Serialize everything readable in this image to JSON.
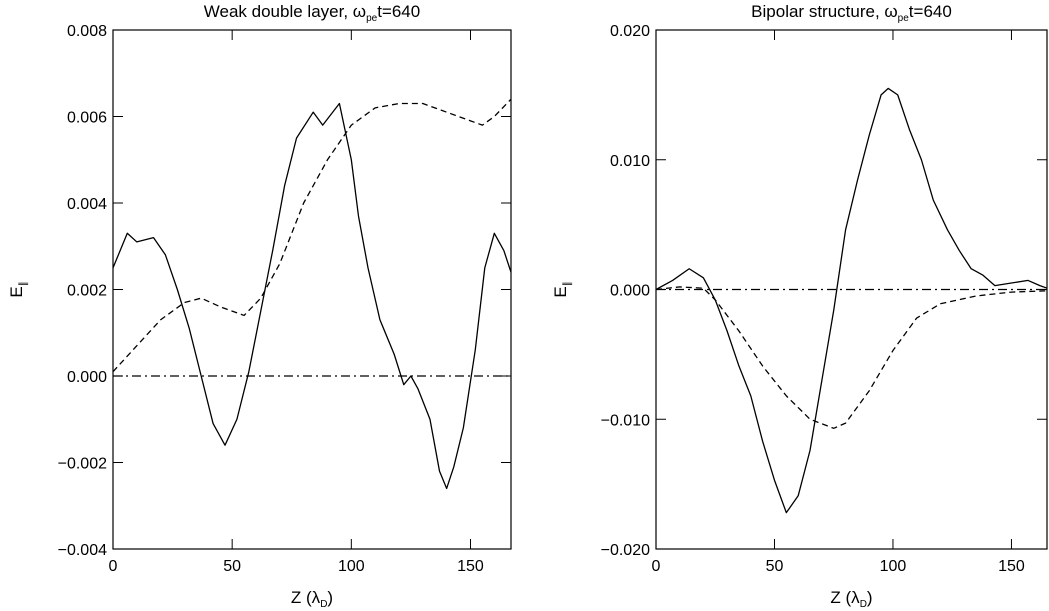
{
  "chart_data": [
    {
      "type": "line",
      "title": "Weak double layer, ω",
      "title_subscript": "pe",
      "title_suffix": "t=640",
      "xlabel": "Z (λ",
      "xlabel_subscript": "D",
      "xlabel_suffix": ")",
      "ylabel": "E",
      "ylabel_subscript": "∥",
      "xlim": [
        0,
        167
      ],
      "xticks": [
        0,
        50,
        100,
        150
      ],
      "ylim": [
        -0.004,
        0.008
      ],
      "yticks": [
        {
          "value": -0.004,
          "label": "−0.004"
        },
        {
          "value": -0.002,
          "label": "−0.002"
        },
        {
          "value": 0,
          "label": "0.000"
        },
        {
          "value": 0.002,
          "label": "0.002"
        },
        {
          "value": 0.004,
          "label": "0.004"
        },
        {
          "value": 0.006,
          "label": "0.006"
        },
        {
          "value": 0.008,
          "label": "0.008"
        }
      ],
      "series": [
        {
          "style": "solid",
          "color": "#000000",
          "x": [
            0,
            6,
            10,
            17,
            22,
            27,
            32,
            37,
            42,
            47,
            52,
            57,
            62,
            67,
            72,
            77,
            84,
            88,
            95,
            100,
            103,
            107,
            112,
            118,
            122,
            125,
            128,
            133,
            137,
            140,
            143,
            147,
            152,
            156,
            160,
            164,
            167
          ],
          "values": [
            0.0025,
            0.0033,
            0.0031,
            0.0032,
            0.0028,
            0.002,
            0.0011,
            0,
            -0.0011,
            -0.0016,
            -0.001,
            0.0001,
            0.0015,
            0.0029,
            0.0044,
            0.0055,
            0.0061,
            0.0058,
            0.0063,
            0.005,
            0.0037,
            0.0025,
            0.0013,
            0.0005,
            -0.0002,
            0,
            -0.0003,
            -0.001,
            -0.0022,
            -0.0026,
            -0.0021,
            -0.0012,
            0.0006,
            0.0025,
            0.0033,
            0.0029,
            0.0024
          ]
        },
        {
          "style": "dashed",
          "color": "#000000",
          "x": [
            0,
            10,
            20,
            30,
            37,
            45,
            55,
            62,
            70,
            80,
            90,
            100,
            110,
            120,
            130,
            140,
            150,
            155,
            160,
            167
          ],
          "values": [
            0.0001,
            0.0007,
            0.0013,
            0.0017,
            0.0018,
            0.0016,
            0.0014,
            0.0018,
            0.0026,
            0.004,
            0.005,
            0.0058,
            0.0062,
            0.0063,
            0.0063,
            0.0061,
            0.0059,
            0.0058,
            0.006,
            0.0064
          ]
        },
        {
          "style": "dashdot",
          "color": "#000000",
          "x": [
            0,
            167
          ],
          "values": [
            0,
            0
          ]
        }
      ]
    },
    {
      "type": "line",
      "title": "Bipolar structure, ω",
      "title_subscript": "pe",
      "title_suffix": "t=640",
      "xlabel": "Z (λ",
      "xlabel_subscript": "D",
      "xlabel_suffix": ")",
      "ylabel": "E",
      "ylabel_subscript": "∥",
      "xlim": [
        0,
        165
      ],
      "xticks": [
        0,
        50,
        100,
        150
      ],
      "ylim": [
        -0.02,
        0.02
      ],
      "yticks": [
        {
          "value": -0.02,
          "label": "−0.020"
        },
        {
          "value": -0.01,
          "label": "−0.010"
        },
        {
          "value": 0,
          "label": "0.000"
        },
        {
          "value": 0.01,
          "label": "0.010"
        },
        {
          "value": 0.02,
          "label": "0.020"
        }
      ],
      "series": [
        {
          "style": "solid",
          "color": "#000000",
          "x": [
            0,
            7,
            14,
            20,
            25,
            30,
            35,
            40,
            45,
            50,
            55,
            60,
            65,
            70,
            75,
            80,
            85,
            90,
            95,
            98,
            102,
            107,
            112,
            117,
            123,
            128,
            133,
            138,
            143,
            150,
            157,
            162,
            165
          ],
          "values": [
            0,
            0.0007,
            0.0016,
            0.0009,
            -0.0008,
            -0.0032,
            -0.0059,
            -0.0082,
            -0.0117,
            -0.0147,
            -0.0172,
            -0.0159,
            -0.0124,
            -0.007,
            -0.0016,
            0.0046,
            0.0084,
            0.0119,
            0.015,
            0.0155,
            0.015,
            0.0123,
            0.01,
            0.0069,
            0.0046,
            0.003,
            0.0016,
            0.0011,
            0.0003,
            0.0005,
            0.0007,
            0.0003,
            0.0001
          ]
        },
        {
          "style": "dashed",
          "color": "#000000",
          "x": [
            0,
            10,
            20,
            25,
            35,
            45,
            55,
            65,
            75,
            80,
            90,
            100,
            110,
            120,
            135,
            150,
            165
          ],
          "values": [
            0,
            0.0002,
            0.0001,
            -0.0008,
            -0.0032,
            -0.0059,
            -0.0082,
            -0.01,
            -0.0107,
            -0.0103,
            -0.0078,
            -0.0047,
            -0.0022,
            -0.0011,
            -0.0005,
            -0.0002,
            -0.0001
          ]
        },
        {
          "style": "dashdot",
          "color": "#000000",
          "x": [
            0,
            165
          ],
          "values": [
            0,
            0
          ]
        }
      ]
    }
  ]
}
